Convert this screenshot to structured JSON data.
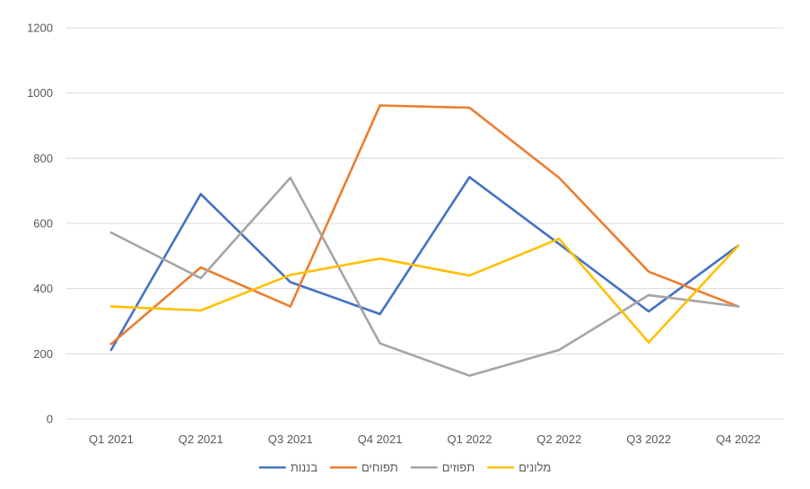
{
  "chart_data": {
    "type": "line",
    "title": "",
    "xlabel": "",
    "ylabel": "",
    "categories": [
      "Q1 2021",
      "Q2 2021",
      "Q3 2021",
      "Q4 2021",
      "Q1 2022",
      "Q2 2022",
      "Q3 2022",
      "Q4 2022"
    ],
    "ylim": [
      0,
      1200
    ],
    "yticks": [
      0,
      200,
      400,
      600,
      800,
      1000,
      1200
    ],
    "grid": true,
    "legend_position": "bottom",
    "series": [
      {
        "name": "בננות",
        "color": "#4472c4",
        "values": [
          212,
          690,
          420,
          322,
          742,
          537,
          330,
          532
        ]
      },
      {
        "name": "תפוחים",
        "color": "#ed7d31",
        "values": [
          230,
          465,
          345,
          962,
          955,
          740,
          452,
          345
        ]
      },
      {
        "name": "תפוזים",
        "color": "#a5a5a5",
        "values": [
          572,
          432,
          740,
          232,
          133,
          212,
          380,
          345
        ]
      },
      {
        "name": "מלונים",
        "color": "#ffc000",
        "values": [
          345,
          333,
          442,
          492,
          440,
          553,
          235,
          532
        ]
      }
    ]
  }
}
